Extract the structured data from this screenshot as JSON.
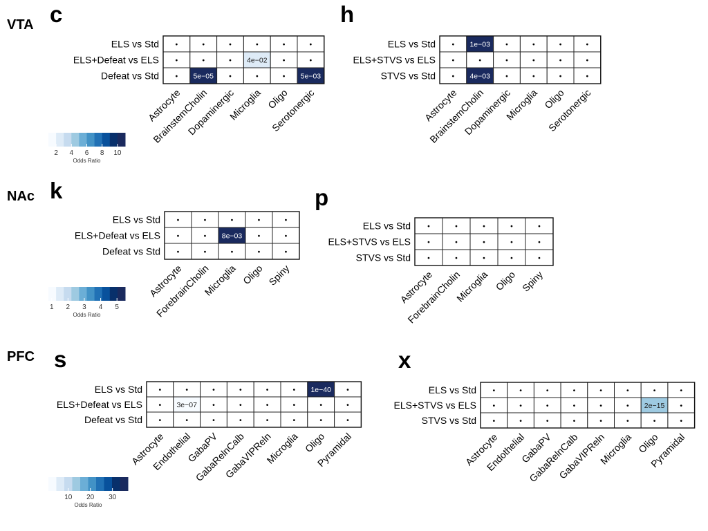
{
  "regions": [
    "VTA",
    "NAc",
    "PFC"
  ],
  "chart_data": [
    {
      "type": "heatmap",
      "panel": "c",
      "region": "VTA",
      "rows": [
        "ELS vs Std",
        "ELS+Defeat vs ELS",
        "Defeat vs Std"
      ],
      "columns": [
        "Astrocyte",
        "BrainstemCholin",
        "Dopaminergic",
        "Microglia",
        "Oligo",
        "Serotonergic"
      ],
      "cells": [
        {
          "row": 1,
          "col": 3,
          "label": "4e−02",
          "odds_ratio": 1.8
        },
        {
          "row": 2,
          "col": 1,
          "label": "5e−05",
          "odds_ratio": 10.5
        },
        {
          "row": 2,
          "col": 5,
          "label": "5e−03",
          "odds_ratio": 10.5
        }
      ],
      "dot": "•",
      "legend": {
        "title": "Odds Ratio",
        "min": 1,
        "max": 11,
        "ticks": [
          2,
          4,
          6,
          8,
          10
        ]
      }
    },
    {
      "type": "heatmap",
      "panel": "h",
      "region": "VTA",
      "rows": [
        "ELS vs Std",
        "ELS+STVS vs ELS",
        "STVS vs Std"
      ],
      "columns": [
        "Astrocyte",
        "BrainstemCholin",
        "Dopaminergic",
        "Microglia",
        "Oligo",
        "Serotonergic"
      ],
      "cells": [
        {
          "row": 0,
          "col": 1,
          "label": "1e−03",
          "odds_ratio": 10.5
        },
        {
          "row": 2,
          "col": 1,
          "label": "4e−03",
          "odds_ratio": 10.5
        }
      ],
      "dot": "•",
      "legend": null
    },
    {
      "type": "heatmap",
      "panel": "k",
      "region": "NAc",
      "rows": [
        "ELS vs Std",
        "ELS+Defeat vs ELS",
        "Defeat vs Std"
      ],
      "columns": [
        "Astrocyte",
        "ForebrainCholin",
        "Microglia",
        "Oligo",
        "Spiny"
      ],
      "cells": [
        {
          "row": 1,
          "col": 2,
          "label": "8e−03",
          "odds_ratio": 5.3
        }
      ],
      "dot": "•",
      "legend": {
        "title": "Odds Ratio",
        "min": 0.8,
        "max": 5.5,
        "ticks": [
          1,
          2,
          3,
          4,
          5
        ]
      }
    },
    {
      "type": "heatmap",
      "panel": "p",
      "region": "NAc",
      "rows": [
        "ELS vs Std",
        "ELS+STVS vs ELS",
        "STVS vs Std"
      ],
      "columns": [
        "Astrocyte",
        "ForebrainCholin",
        "Microglia",
        "Oligo",
        "Spiny"
      ],
      "cells": [],
      "dot": "•",
      "legend": null
    },
    {
      "type": "heatmap",
      "panel": "s",
      "region": "PFC",
      "rows": [
        "ELS vs Std",
        "ELS+Defeat vs ELS",
        "Defeat vs Std"
      ],
      "columns": [
        "Astrocyte",
        "Endothelial",
        "GabaPV",
        "GabaRelnCalb",
        "GabaVIPReln",
        "Microglia",
        "Oligo",
        "Pyramidal"
      ],
      "cells": [
        {
          "row": 0,
          "col": 6,
          "label": "1e−40",
          "odds_ratio": 36
        },
        {
          "row": 1,
          "col": 1,
          "label": "3e−07",
          "odds_ratio": 2
        }
      ],
      "dot": "•",
      "legend": {
        "title": "Odds Ratio",
        "min": 1,
        "max": 37,
        "ticks": [
          10,
          20,
          30
        ]
      }
    },
    {
      "type": "heatmap",
      "panel": "x",
      "region": "PFC",
      "rows": [
        "ELS vs Std",
        "ELS+STVS vs ELS",
        "STVS vs Std"
      ],
      "columns": [
        "Astrocyte",
        "Endothelial",
        "GabaPV",
        "GabaRelnCalb",
        "GabaVIPReln",
        "Microglia",
        "Oligo",
        "Pyramidal"
      ],
      "cells": [
        {
          "row": 1,
          "col": 6,
          "label": "2e−15",
          "odds_ratio": 14
        }
      ],
      "dot": "•",
      "legend": null
    }
  ]
}
